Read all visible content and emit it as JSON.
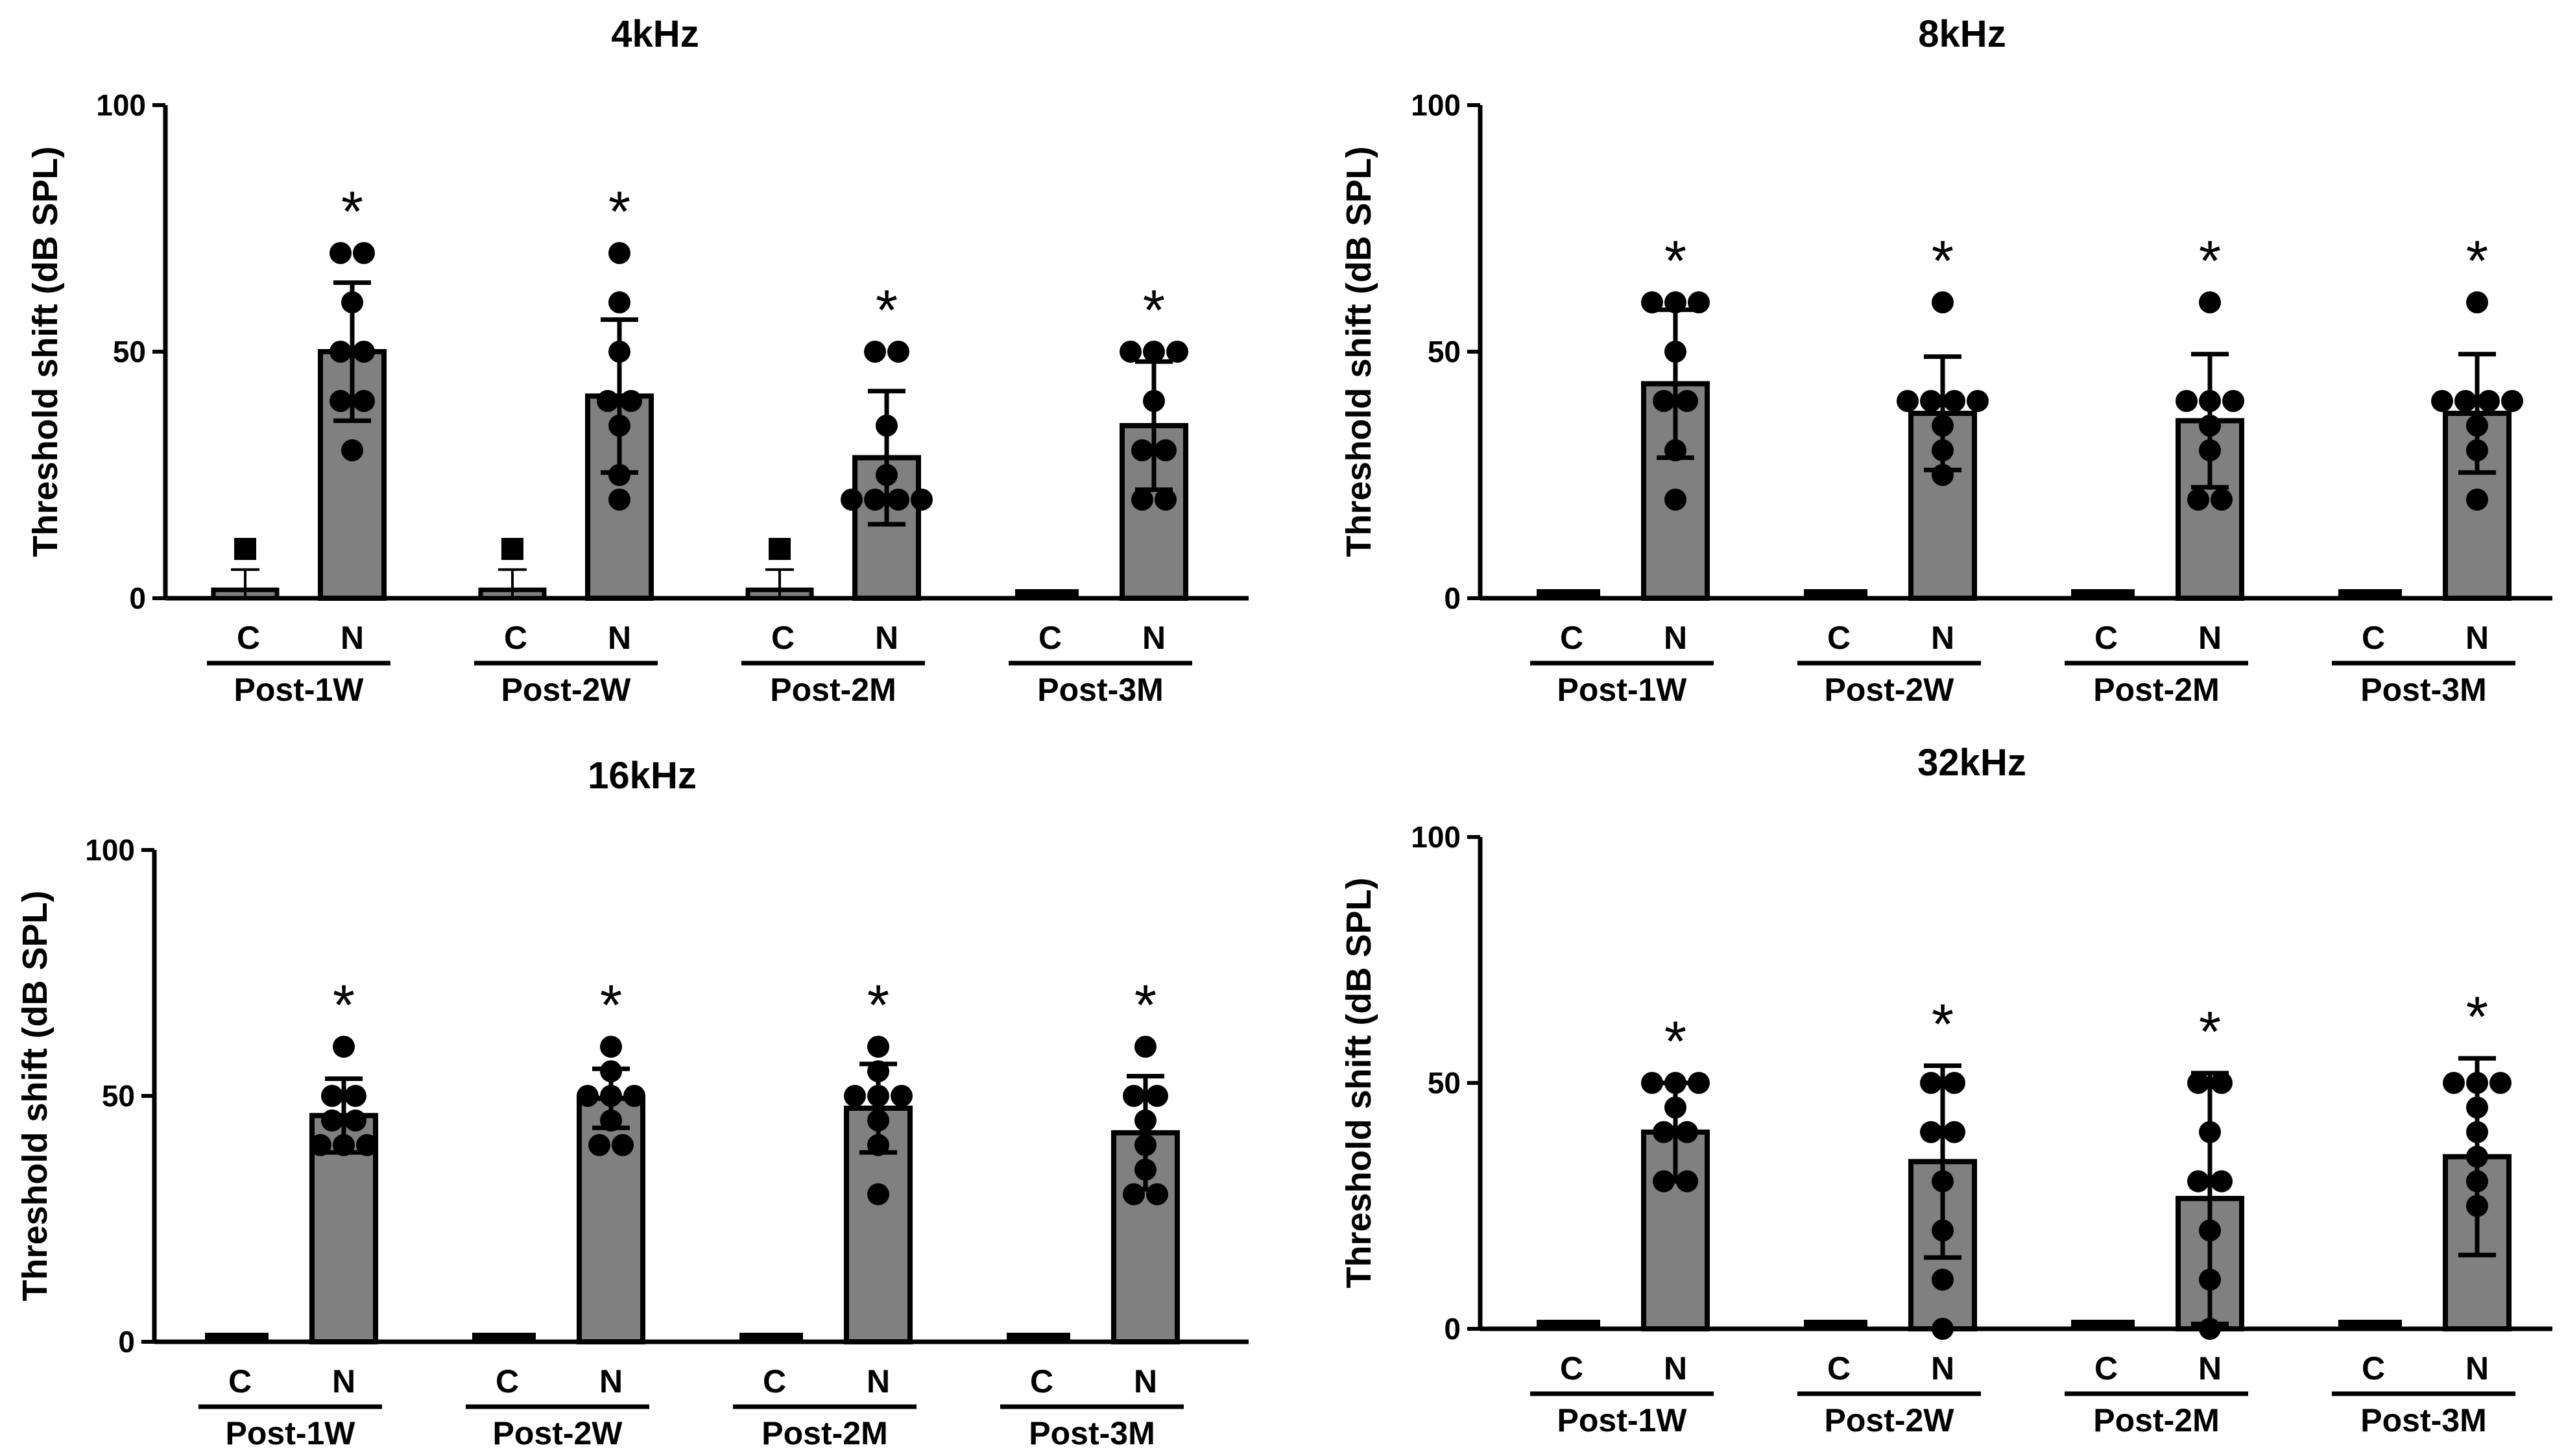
{
  "colors": {
    "bar": "#808080",
    "ink": "#000000",
    "background": "#ffffff"
  },
  "chart_data": [
    {
      "type": "bar",
      "title": "4kHz",
      "ylabel": "Threshold shift (dB SPL)",
      "ylim": [
        0,
        100
      ],
      "yticks": [
        "0",
        "50",
        "100"
      ],
      "periods": [
        "Post-1W",
        "Post-2W",
        "Post-2M",
        "Post-3M"
      ],
      "groups": [
        "C",
        "N"
      ],
      "significance": "*",
      "series": [
        {
          "name": "C",
          "means": [
            1.7,
            1.7,
            1.7,
            0
          ],
          "sd": [
            4.1,
            4.1,
            4.1,
            0
          ],
          "points": [
            [
              0,
              0,
              0,
              0,
              0,
              0,
              0,
              10
            ],
            [
              0,
              0,
              0,
              0,
              0,
              0,
              0,
              10
            ],
            [
              0,
              0,
              0,
              0,
              0,
              0,
              0,
              10
            ],
            [
              0,
              0,
              0,
              0,
              0,
              0,
              0,
              0
            ]
          ]
        },
        {
          "name": "N",
          "means": [
            50,
            41,
            28.5,
            35
          ],
          "sd": [
            14,
            15.5,
            13.5,
            13
          ],
          "points": [
            [
              30,
              40,
              40,
              50,
              50,
              60,
              70,
              70
            ],
            [
              20,
              25,
              35,
              40,
              40,
              50,
              60,
              70
            ],
            [
              20,
              20,
              20,
              20,
              25,
              35,
              50,
              50
            ],
            [
              20,
              20,
              30,
              30,
              40,
              50,
              50,
              50
            ]
          ]
        }
      ]
    },
    {
      "type": "bar",
      "title": "8kHz",
      "ylabel": "Threshold shift (dB SPL)",
      "ylim": [
        0,
        100
      ],
      "yticks": [
        "0",
        "50",
        "100"
      ],
      "periods": [
        "Post-1W",
        "Post-2W",
        "Post-2M",
        "Post-3M"
      ],
      "groups": [
        "C",
        "N"
      ],
      "significance": "*",
      "series": [
        {
          "name": "C",
          "means": [
            0,
            0,
            0,
            0
          ],
          "sd": [
            0,
            0,
            0,
            0
          ],
          "points": [
            [
              0,
              0,
              0,
              0,
              0,
              0,
              0,
              0
            ],
            [
              0,
              0,
              0,
              0,
              0,
              0,
              0,
              0
            ],
            [
              0,
              0,
              0,
              0,
              0,
              0,
              0,
              0
            ],
            [
              0,
              0,
              0,
              0,
              0,
              0,
              0,
              0
            ]
          ]
        },
        {
          "name": "N",
          "means": [
            43.5,
            37.5,
            36,
            37.5
          ],
          "sd": [
            15,
            11.5,
            13.5,
            12
          ],
          "points": [
            [
              20,
              30,
              40,
              40,
              50,
              60,
              60,
              60
            ],
            [
              25,
              30,
              35,
              40,
              40,
              40,
              40,
              60
            ],
            [
              20,
              20,
              30,
              35,
              40,
              40,
              40,
              60
            ],
            [
              20,
              30,
              35,
              40,
              40,
              40,
              40,
              60
            ]
          ]
        }
      ]
    },
    {
      "type": "bar",
      "title": "16kHz",
      "ylabel": "Threshold shift (dB SPL)",
      "ylim": [
        0,
        100
      ],
      "yticks": [
        "0",
        "50",
        "100"
      ],
      "periods": [
        "Post-1W",
        "Post-2W",
        "Post-2M",
        "Post-3M"
      ],
      "groups": [
        "C",
        "N"
      ],
      "significance": "*",
      "series": [
        {
          "name": "C",
          "means": [
            0,
            0,
            0,
            0
          ],
          "sd": [
            0,
            0,
            0,
            0
          ],
          "points": [
            [
              0,
              0,
              0,
              0,
              0,
              0,
              0,
              0
            ],
            [
              0,
              0,
              0,
              0,
              0,
              0,
              0,
              0
            ],
            [
              0,
              0,
              0,
              0,
              0,
              0,
              0,
              0
            ],
            [
              0,
              0,
              0,
              0,
              0,
              0,
              0,
              0
            ]
          ]
        },
        {
          "name": "N",
          "means": [
            46,
            49.5,
            47.5,
            42.5
          ],
          "sd": [
            7.5,
            6,
            9,
            11.5
          ],
          "points": [
            [
              40,
              40,
              40,
              45,
              45,
              50,
              50,
              60
            ],
            [
              40,
              40,
              45,
              50,
              50,
              50,
              55,
              60
            ],
            [
              30,
              40,
              45,
              50,
              50,
              50,
              55,
              60
            ],
            [
              30,
              30,
              35,
              40,
              45,
              50,
              50,
              60
            ]
          ]
        }
      ]
    },
    {
      "type": "bar",
      "title": "32kHz",
      "ylabel": "Threshold shift (dB SPL)",
      "ylim": [
        0,
        100
      ],
      "yticks": [
        "0",
        "50",
        "100"
      ],
      "periods": [
        "Post-1W",
        "Post-2W",
        "Post-2M",
        "Post-3M"
      ],
      "groups": [
        "C",
        "N"
      ],
      "significance": "*",
      "series": [
        {
          "name": "C",
          "means": [
            0,
            0,
            0,
            0
          ],
          "sd": [
            0,
            0,
            0,
            0
          ],
          "points": [
            [
              0,
              0,
              0,
              0,
              0,
              0,
              0,
              0
            ],
            [
              0,
              0,
              0,
              0,
              0,
              0,
              0,
              0
            ],
            [
              0,
              0,
              0,
              0,
              0,
              0,
              0,
              0
            ],
            [
              0,
              0,
              0,
              0,
              0,
              0,
              0,
              0
            ]
          ]
        },
        {
          "name": "N",
          "means": [
            40,
            34,
            26.5,
            35
          ],
          "sd": [
            10,
            19.5,
            25.5,
            20
          ],
          "points": [
            [
              30,
              30,
              40,
              40,
              45,
              50,
              50,
              50
            ],
            [
              0,
              10,
              20,
              30,
              40,
              40,
              50,
              50
            ],
            [
              0,
              10,
              20,
              30,
              30,
              40,
              50,
              50
            ],
            [
              25,
              30,
              35,
              40,
              45,
              50,
              50,
              50
            ]
          ]
        }
      ]
    }
  ]
}
